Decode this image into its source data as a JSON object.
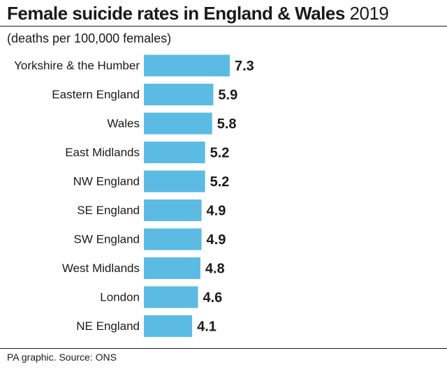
{
  "chart_data": {
    "type": "bar",
    "orientation": "horizontal",
    "title": "Female suicide rates in England & Wales",
    "title_year": "2019",
    "subtitle": "(deaths per 100,000 females)",
    "categories": [
      "Yorkshire & the Humber",
      "Eastern England",
      "Wales",
      "East Midlands",
      "NW England",
      "SE England",
      "SW England",
      "West Midlands",
      "London",
      "NE England"
    ],
    "values": [
      7.3,
      5.9,
      5.8,
      5.2,
      5.2,
      4.9,
      4.9,
      4.8,
      4.6,
      4.1
    ],
    "value_labels": [
      "7.3",
      "5.9",
      "5.8",
      "5.2",
      "5.2",
      "4.9",
      "4.9",
      "4.8",
      "4.6",
      "4.1"
    ],
    "xlim": [
      0,
      7.3
    ],
    "grid": false,
    "bar_color": "#5bbbe2"
  },
  "footer": {
    "source": "PA graphic. Source: ONS"
  }
}
